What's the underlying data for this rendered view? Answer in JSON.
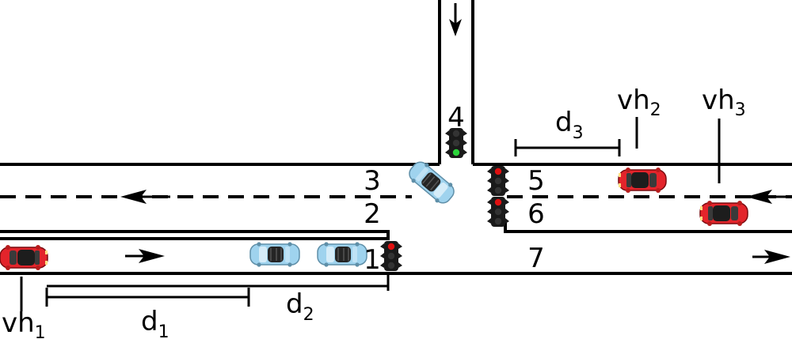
{
  "lights": [
    {
      "id": "1",
      "active": "red"
    },
    {
      "id": "4",
      "active": "green"
    },
    {
      "id": "5",
      "active": "red"
    },
    {
      "id": "6",
      "active": "red"
    }
  ],
  "labels": {
    "light_1": "1",
    "lane_2": "2",
    "lane_3": "3",
    "light_4": "4",
    "light_5": "5",
    "light_6": "6",
    "lane_7": "7"
  },
  "distances": {
    "d1": {
      "base": "d",
      "sub": "1"
    },
    "d2": {
      "base": "d",
      "sub": "2"
    },
    "d3": {
      "base": "d",
      "sub": "3"
    }
  },
  "vehicles": {
    "vh1": {
      "base": "vh",
      "sub": "1"
    },
    "vh2": {
      "base": "vh",
      "sub": "2"
    },
    "vh3": {
      "base": "vh",
      "sub": "3"
    }
  },
  "colors": {
    "red_car": "#e3242b",
    "blue_car": "#9fd3ee",
    "light_red": "#e01010",
    "light_green": "#2bd43a",
    "light_off": "#333333",
    "light_housing": "#1a1a1a"
  }
}
